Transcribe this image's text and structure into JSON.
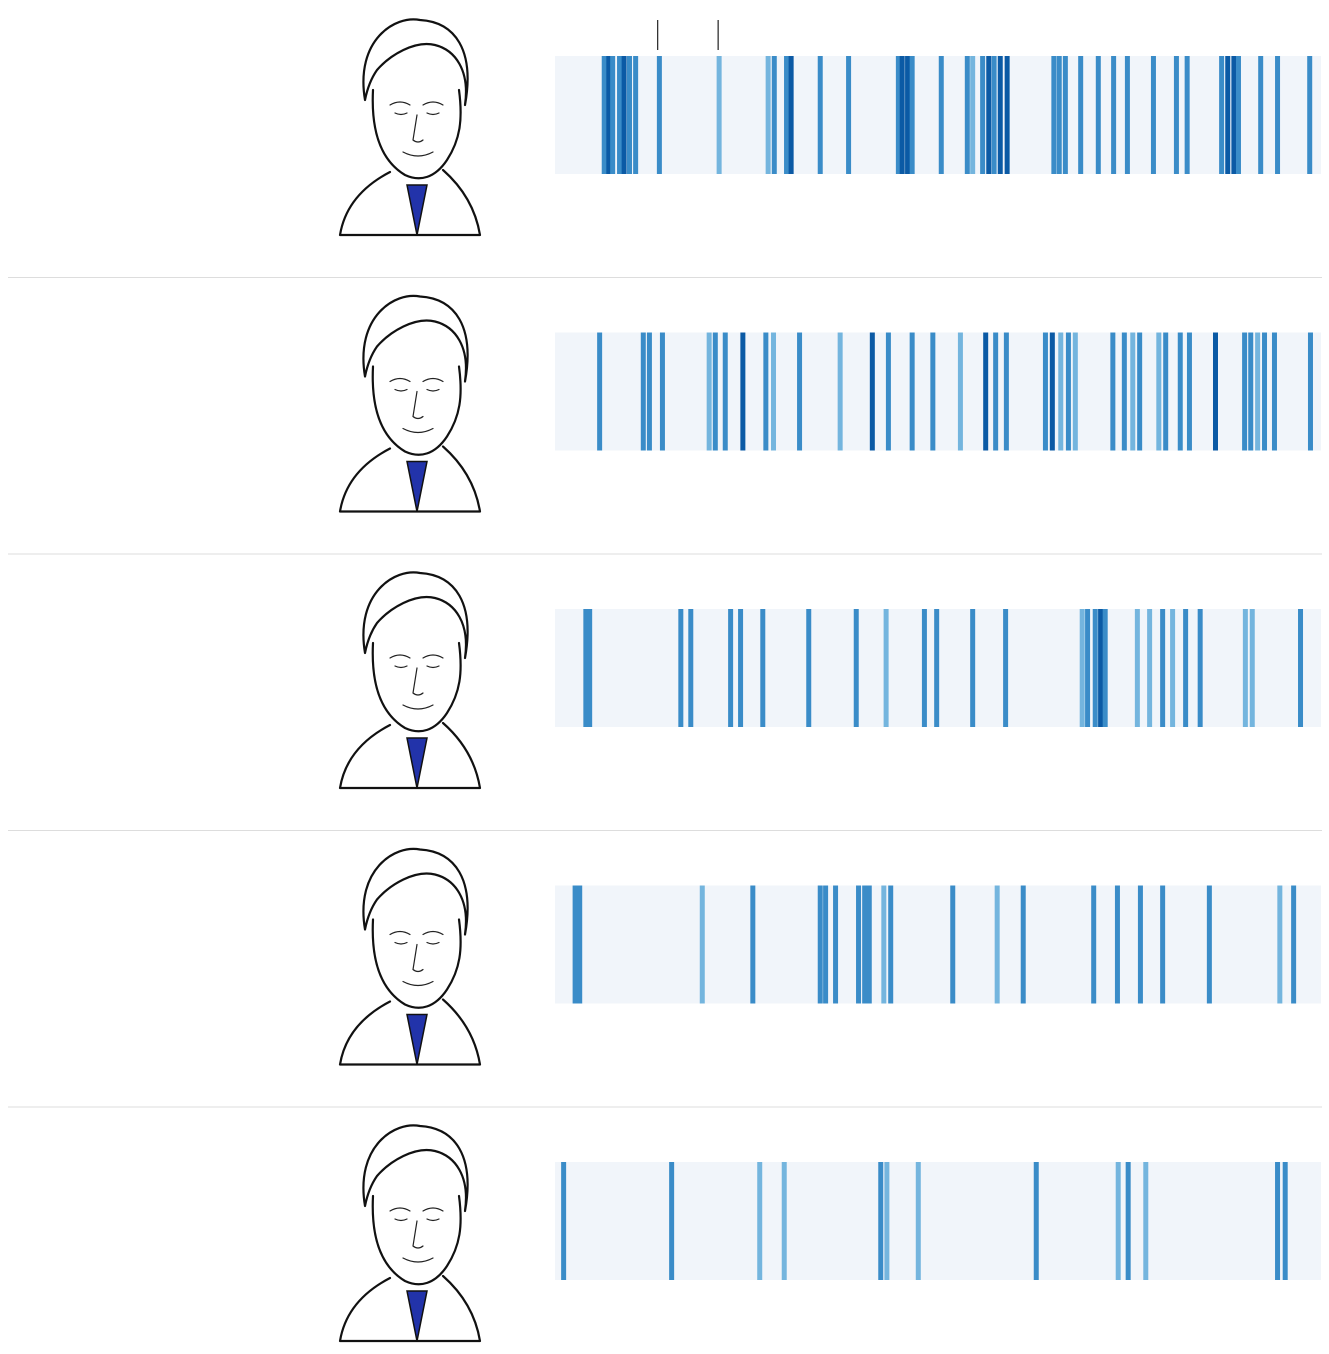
{
  "chart_data": [
    {
      "type": "strip",
      "xlim": [
        0,
        100
      ],
      "background": "#f1f5fa",
      "colors": [
        "#74b5de",
        "#3a8cc8",
        "#0b5aa5"
      ],
      "markers": [
        13.4,
        21.3
      ],
      "x": [
        6.1,
        6.7,
        7.2,
        8.1,
        8.7,
        9.4,
        10.2,
        13.3,
        21.1,
        27.5,
        28.3,
        29.9,
        30.5,
        34.3,
        38.0,
        44.5,
        45.0,
        45.7,
        46.3,
        50.1,
        53.5,
        54.2,
        55.5,
        56.3,
        57.0,
        57.8,
        58.7,
        64.8,
        65.5,
        66.3,
        68.3,
        70.6,
        72.6,
        74.4,
        77.8,
        80.8,
        82.2,
        86.7,
        87.5,
        88.3,
        88.9,
        91.8,
        94.0,
        98.2
      ],
      "values": [
        2,
        3,
        2,
        2,
        3,
        2,
        2,
        2,
        1,
        1,
        2,
        2,
        3,
        2,
        2,
        2,
        3,
        3,
        2,
        2,
        2,
        1,
        2,
        3,
        2,
        3,
        3,
        2,
        2,
        2,
        2,
        2,
        2,
        2,
        2,
        2,
        2,
        2,
        3,
        3,
        2,
        2,
        2,
        2
      ]
    },
    {
      "type": "strip",
      "xlim": [
        0,
        100
      ],
      "background": "#f1f5fa",
      "colors": [
        "#74b5de",
        "#3a8cc8",
        "#0b5aa5"
      ],
      "x": [
        5.5,
        11.2,
        12.0,
        13.7,
        19.8,
        20.6,
        21.9,
        24.2,
        27.2,
        28.2,
        31.6,
        36.9,
        41.1,
        43.2,
        46.3,
        49.0,
        52.6,
        55.9,
        57.2,
        58.6,
        63.7,
        64.6,
        65.7,
        66.7,
        67.6,
        72.5,
        74.0,
        75.1,
        76.0,
        78.5,
        79.4,
        81.3,
        82.5,
        85.9,
        89.7,
        90.5,
        91.4,
        92.3,
        93.6,
        98.3
      ],
      "values": [
        2,
        2,
        2,
        2,
        1,
        2,
        2,
        3,
        2,
        1,
        2,
        1,
        3,
        2,
        2,
        2,
        1,
        3,
        2,
        2,
        2,
        3,
        1,
        2,
        1,
        2,
        2,
        1,
        2,
        1,
        2,
        2,
        2,
        3,
        2,
        2,
        1,
        2,
        2,
        2
      ]
    },
    {
      "type": "strip",
      "xlim": [
        0,
        100
      ],
      "background": "#f1f5fa",
      "colors": [
        "#74b5de",
        "#3a8cc8",
        "#0b5aa5"
      ],
      "x": [
        3.7,
        4.2,
        16.1,
        17.4,
        22.6,
        23.9,
        26.8,
        32.8,
        39.0,
        42.9,
        47.9,
        49.5,
        54.2,
        58.5,
        68.5,
        69.2,
        70.2,
        70.9,
        71.5,
        75.7,
        77.3,
        79.0,
        80.3,
        82.0,
        83.9,
        89.8,
        90.7,
        97.0
      ],
      "values": [
        2,
        2,
        2,
        2,
        2,
        2,
        2,
        2,
        2,
        1,
        2,
        2,
        2,
        2,
        1,
        2,
        2,
        3,
        2,
        1,
        1,
        2,
        1,
        2,
        2,
        1,
        1,
        2
      ]
    },
    {
      "type": "strip",
      "xlim": [
        0,
        100
      ],
      "background": "#f1f5fa",
      "colors": [
        "#74b5de",
        "#3a8cc8",
        "#0b5aa5"
      ],
      "x": [
        2.3,
        2.9,
        18.9,
        25.5,
        34.3,
        35.0,
        36.3,
        39.3,
        40.1,
        40.7,
        42.6,
        43.5,
        51.6,
        57.4,
        60.8,
        70.0,
        73.1,
        76.1,
        79.0,
        85.1,
        94.3,
        96.1
      ],
      "values": [
        2,
        2,
        1,
        2,
        2,
        2,
        2,
        2,
        2,
        2,
        1,
        2,
        2,
        1,
        2,
        2,
        2,
        2,
        2,
        2,
        1,
        2
      ]
    },
    {
      "type": "strip",
      "xlim": [
        0,
        100
      ],
      "background": "#f1f5fa",
      "colors": [
        "#74b5de",
        "#3a8cc8",
        "#0b5aa5"
      ],
      "x": [
        0.8,
        14.9,
        26.4,
        29.6,
        42.2,
        43.0,
        47.1,
        62.5,
        73.2,
        74.5,
        76.8,
        94.0,
        95.0
      ],
      "values": [
        2,
        2,
        1,
        1,
        2,
        1,
        1,
        2,
        1,
        2,
        1,
        2,
        2
      ]
    }
  ]
}
